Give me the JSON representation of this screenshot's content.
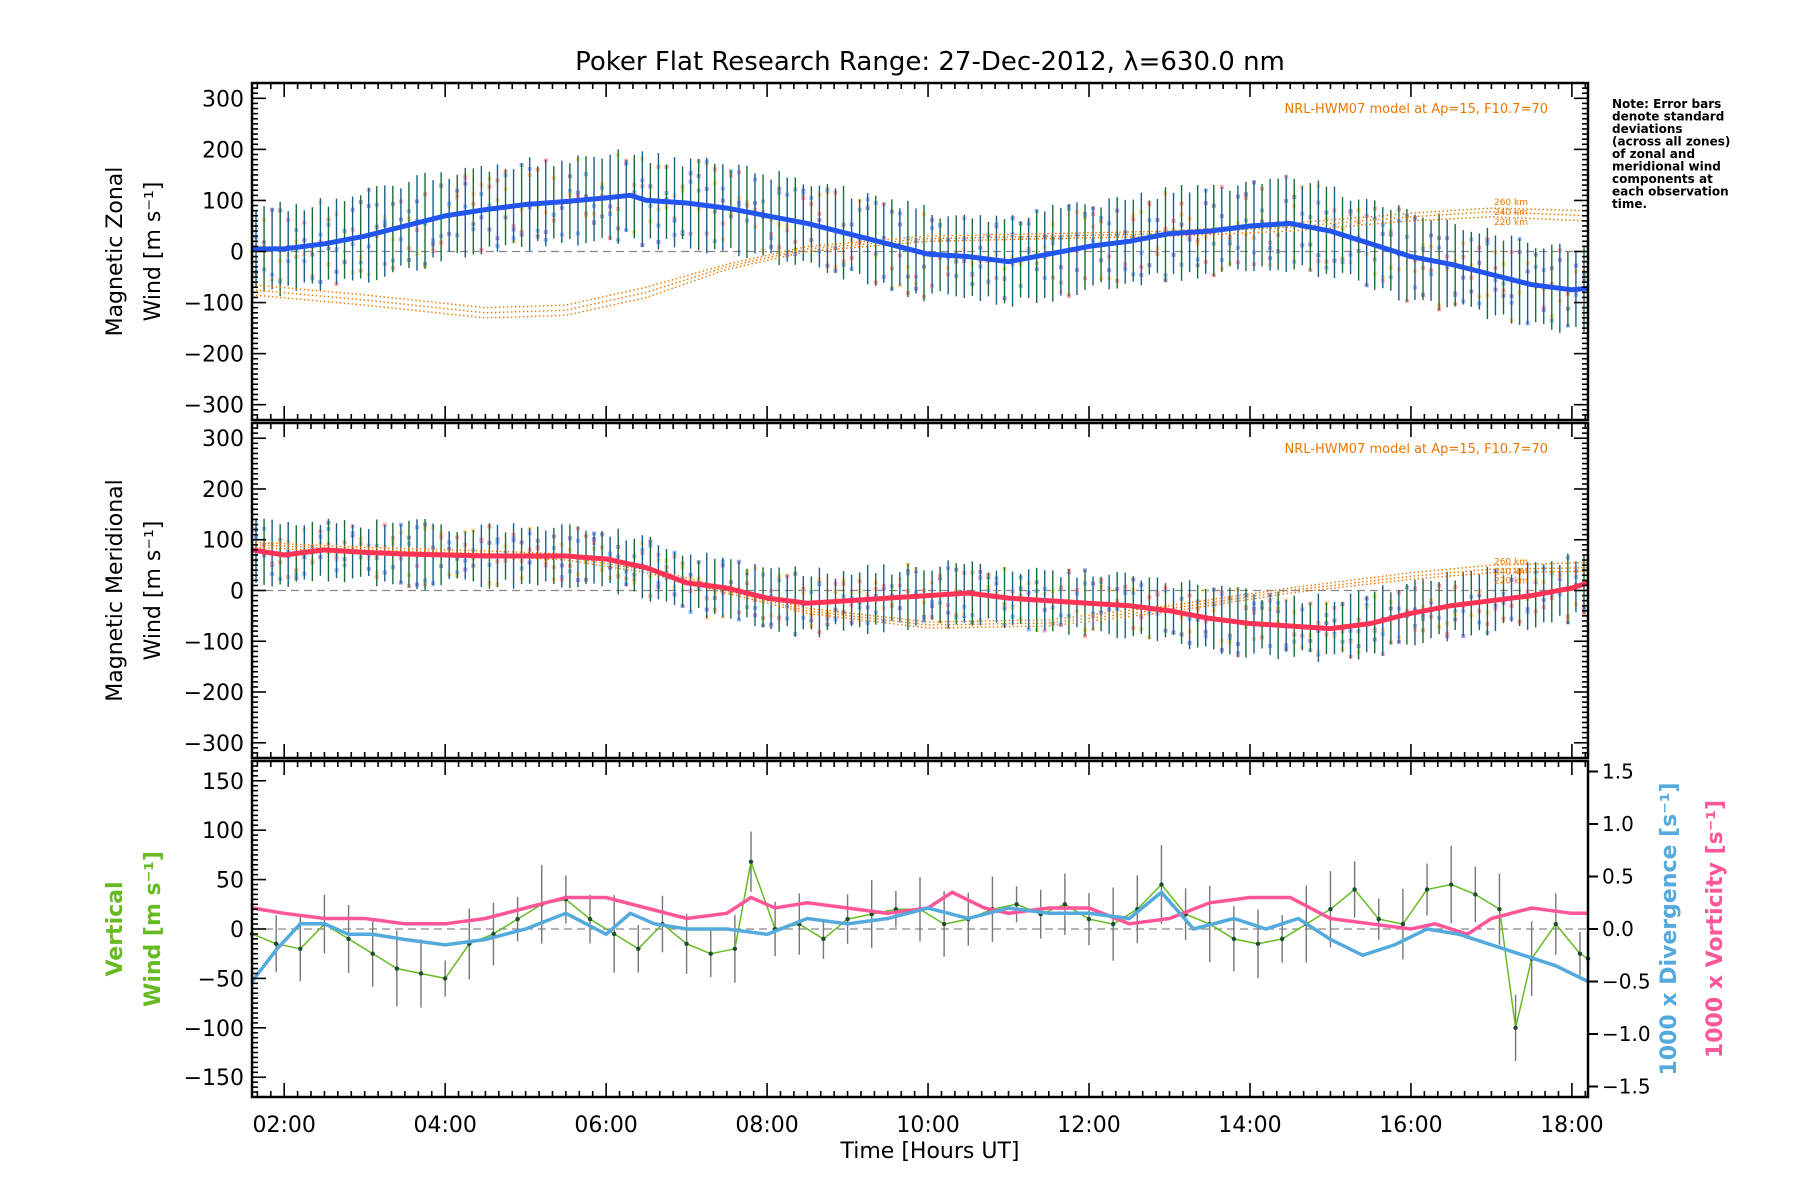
{
  "title": "Poker Flat Research Range: 27-Dec-2012, λ=630.0 nm",
  "note": [
    "Note: Error bars",
    "denote standard",
    "deviations",
    "(across all zones)",
    "of zonal and",
    "meridional wind",
    "components at",
    "each observation",
    "time."
  ],
  "model_label": "NRL-HWM07 model at Ap=15, F10.7=70",
  "altitude_labels": [
    "260 km",
    "240 km",
    "220 km"
  ],
  "xlabel": "Time [Hours UT]",
  "x_ticks": [
    "02:00",
    "04:00",
    "06:00",
    "08:00",
    "10:00",
    "12:00",
    "14:00",
    "16:00",
    "18:00"
  ],
  "colors": {
    "zonal": "#2255ee",
    "meridional": "#ff3355",
    "model": "#ee7700",
    "vertical": "#66bb22",
    "divergence": "#55aadd",
    "vorticity": "#ff5599",
    "zone_yellow": "#ffd98c",
    "zone_red": "#ffaaaa",
    "zone_purple": "#a99ae0",
    "zone_blue": "#99bbff",
    "errorbar_green": "#1a6b3a",
    "errorbar_gray": "#777777"
  },
  "chart_data": [
    {
      "type": "line",
      "name": "zonal-panel",
      "ylabel": [
        "Magnetic Zonal",
        "Wind [m s⁻¹]"
      ],
      "xlim": [
        1.6,
        18.2
      ],
      "ylim": [
        -330,
        330
      ],
      "y_ticks": [
        "300",
        "200",
        "100",
        "0",
        "−100",
        "−200",
        "−300"
      ],
      "y_tick_values": [
        300,
        200,
        100,
        0,
        -100,
        -200,
        -300
      ],
      "mean_wind": {
        "x": [
          1.6,
          2.0,
          2.5,
          3.0,
          3.5,
          4.0,
          4.5,
          5.0,
          5.5,
          6.0,
          6.3,
          6.5,
          7.0,
          7.5,
          8.0,
          8.5,
          9.0,
          9.5,
          10.0,
          10.5,
          11.0,
          11.5,
          12.0,
          12.5,
          13.0,
          13.5,
          14.0,
          14.5,
          15.0,
          15.5,
          16.0,
          16.5,
          17.0,
          17.5,
          18.0,
          18.2
        ],
        "y": [
          5,
          5,
          15,
          30,
          50,
          70,
          82,
          92,
          98,
          105,
          110,
          100,
          95,
          85,
          70,
          55,
          35,
          15,
          -5,
          -10,
          -20,
          -5,
          10,
          20,
          35,
          40,
          50,
          55,
          40,
          15,
          -10,
          -25,
          -45,
          -65,
          -75,
          -72
        ]
      },
      "model": [
        {
          "name": "260 km",
          "x": [
            1.6,
            3.0,
            4.5,
            5.5,
            6.5,
            7.5,
            8.5,
            10.0,
            11.5,
            13.0,
            14.5,
            16.0,
            17.0,
            18.2
          ],
          "y": [
            -65,
            -85,
            -110,
            -105,
            -70,
            -25,
            10,
            30,
            35,
            40,
            55,
            75,
            85,
            80
          ]
        },
        {
          "name": "240 km",
          "x": [
            1.6,
            3.0,
            4.5,
            5.5,
            6.5,
            7.5,
            8.5,
            10.0,
            11.5,
            13.0,
            14.5,
            16.0,
            17.0,
            18.2
          ],
          "y": [
            -75,
            -95,
            -120,
            -115,
            -80,
            -30,
            5,
            25,
            30,
            35,
            48,
            68,
            78,
            70
          ]
        },
        {
          "name": "220 km",
          "x": [
            1.6,
            3.0,
            4.5,
            5.5,
            6.5,
            7.5,
            8.5,
            10.0,
            11.5,
            13.0,
            14.5,
            16.0,
            17.0,
            18.2
          ],
          "y": [
            -85,
            -105,
            -130,
            -125,
            -90,
            -35,
            0,
            20,
            25,
            30,
            40,
            60,
            68,
            60
          ]
        }
      ]
    },
    {
      "type": "line",
      "name": "meridional-panel",
      "ylabel": [
        "Magnetic Meridional",
        "Wind [m s⁻¹]"
      ],
      "xlim": [
        1.6,
        18.2
      ],
      "ylim": [
        -330,
        330
      ],
      "y_ticks": [
        "300",
        "200",
        "100",
        "0",
        "−100",
        "−200",
        "−300"
      ],
      "y_tick_values": [
        300,
        200,
        100,
        0,
        -100,
        -200,
        -300
      ],
      "mean_wind": {
        "x": [
          1.6,
          2.0,
          2.5,
          3.0,
          3.5,
          4.0,
          4.5,
          5.0,
          5.5,
          6.0,
          6.5,
          7.0,
          7.5,
          8.0,
          8.5,
          9.0,
          9.5,
          10.0,
          10.5,
          11.0,
          11.5,
          12.0,
          12.5,
          13.0,
          13.5,
          14.0,
          14.5,
          15.0,
          15.5,
          16.0,
          16.5,
          17.0,
          17.5,
          18.0,
          18.2
        ],
        "y": [
          80,
          70,
          80,
          75,
          72,
          70,
          68,
          68,
          68,
          62,
          45,
          15,
          5,
          -15,
          -25,
          -20,
          -15,
          -10,
          -5,
          -15,
          -20,
          -25,
          -30,
          -40,
          -55,
          -65,
          -70,
          -75,
          -65,
          -45,
          -30,
          -20,
          -10,
          5,
          15
        ]
      },
      "model": [
        {
          "name": "260 km",
          "x": [
            1.6,
            3.0,
            4.5,
            5.5,
            6.5,
            7.5,
            8.5,
            10.0,
            11.5,
            13.0,
            14.5,
            16.0,
            17.0,
            18.2
          ],
          "y": [
            95,
            85,
            78,
            72,
            45,
            5,
            -35,
            -62,
            -58,
            -30,
            5,
            35,
            50,
            55
          ]
        },
        {
          "name": "240 km",
          "x": [
            1.6,
            3.0,
            4.5,
            5.5,
            6.5,
            7.5,
            8.5,
            10.0,
            11.5,
            13.0,
            14.5,
            16.0,
            17.0,
            18.2
          ],
          "y": [
            90,
            80,
            73,
            66,
            40,
            0,
            -40,
            -68,
            -64,
            -36,
            0,
            28,
            42,
            45
          ]
        },
        {
          "name": "220 km",
          "x": [
            1.6,
            3.0,
            4.5,
            5.5,
            6.5,
            7.5,
            8.5,
            10.0,
            11.5,
            13.0,
            14.5,
            16.0,
            17.0,
            18.2
          ],
          "y": [
            85,
            75,
            68,
            60,
            35,
            -5,
            -45,
            -74,
            -70,
            -42,
            -5,
            22,
            35,
            38
          ]
        }
      ]
    },
    {
      "type": "line",
      "name": "vertical-panel",
      "ylabel": [
        "Vertical",
        "Wind [m s⁻¹]"
      ],
      "y2label_divergence": "1000 x Divergence [s⁻¹]",
      "y2label_vorticity": "1000 x Vorticity [s⁻¹]",
      "xlim": [
        1.6,
        18.2
      ],
      "ylim": [
        -170,
        170
      ],
      "y_ticks": [
        "150",
        "100",
        "50",
        "0",
        "−50",
        "−100",
        "−150"
      ],
      "y_tick_values": [
        150,
        100,
        50,
        0,
        -50,
        -100,
        -150
      ],
      "y2lim": [
        -1.6,
        1.6
      ],
      "y2_ticks": [
        "1.5",
        "1.0",
        "0.5",
        "0.0",
        "−0.5",
        "−1.0",
        "−1.5"
      ],
      "y2_tick_values": [
        1.5,
        1.0,
        0.5,
        0.0,
        -0.5,
        -1.0,
        -1.5
      ],
      "vertical_wind": {
        "x": [
          1.6,
          1.9,
          2.2,
          2.5,
          2.8,
          3.1,
          3.4,
          3.7,
          4.0,
          4.3,
          4.6,
          4.9,
          5.2,
          5.5,
          5.8,
          6.1,
          6.4,
          6.7,
          7.0,
          7.3,
          7.6,
          7.8,
          8.1,
          8.4,
          8.7,
          9.0,
          9.3,
          9.6,
          9.9,
          10.2,
          10.5,
          10.8,
          11.1,
          11.4,
          11.7,
          12.0,
          12.3,
          12.6,
          12.9,
          13.2,
          13.5,
          13.8,
          14.1,
          14.4,
          14.7,
          15.0,
          15.3,
          15.6,
          15.9,
          16.2,
          16.5,
          16.8,
          17.1,
          17.3,
          17.5,
          17.8,
          18.1,
          18.2
        ],
        "y": [
          -5,
          -15,
          -20,
          5,
          -10,
          -25,
          -40,
          -45,
          -50,
          -15,
          -5,
          10,
          25,
          30,
          10,
          -5,
          -20,
          5,
          -15,
          -25,
          -20,
          68,
          0,
          5,
          -10,
          10,
          15,
          20,
          20,
          5,
          10,
          20,
          25,
          15,
          25,
          10,
          5,
          20,
          45,
          15,
          5,
          -10,
          -15,
          -10,
          5,
          20,
          40,
          10,
          5,
          40,
          45,
          35,
          20,
          -100,
          -30,
          5,
          -25,
          -30
        ]
      },
      "divergence": {
        "x": [
          1.6,
          1.9,
          2.2,
          2.5,
          2.8,
          3.1,
          3.5,
          4.0,
          4.5,
          5.0,
          5.5,
          6.0,
          6.3,
          6.6,
          7.0,
          7.5,
          8.0,
          8.5,
          9.0,
          9.5,
          10.0,
          10.5,
          11.0,
          11.5,
          12.0,
          12.5,
          12.9,
          13.3,
          13.8,
          14.2,
          14.6,
          15.0,
          15.4,
          15.8,
          16.2,
          16.6,
          17.0,
          17.4,
          17.8,
          18.2
        ],
        "y": [
          -0.5,
          -0.2,
          0.05,
          0.05,
          -0.05,
          -0.05,
          -0.1,
          -0.15,
          -0.1,
          0.0,
          0.15,
          -0.05,
          0.15,
          0.05,
          0.0,
          0.0,
          -0.05,
          0.1,
          0.05,
          0.1,
          0.2,
          0.1,
          0.2,
          0.15,
          0.15,
          0.1,
          0.35,
          0.0,
          0.1,
          0.0,
          0.1,
          -0.1,
          -0.25,
          -0.15,
          0.0,
          -0.05,
          -0.15,
          -0.25,
          -0.35,
          -0.5
        ]
      },
      "vorticity": {
        "x": [
          1.6,
          2.0,
          2.5,
          3.0,
          3.5,
          4.0,
          4.5,
          5.0,
          5.5,
          6.0,
          6.5,
          7.0,
          7.5,
          7.8,
          8.1,
          8.5,
          9.0,
          9.5,
          10.0,
          10.3,
          10.7,
          11.0,
          11.5,
          12.0,
          12.5,
          13.0,
          13.5,
          14.0,
          14.5,
          15.0,
          15.5,
          16.0,
          16.3,
          16.7,
          17.0,
          17.5,
          18.0,
          18.2
        ],
        "y": [
          0.2,
          0.15,
          0.1,
          0.1,
          0.05,
          0.05,
          0.1,
          0.2,
          0.3,
          0.3,
          0.2,
          0.1,
          0.15,
          0.3,
          0.2,
          0.25,
          0.2,
          0.15,
          0.2,
          0.35,
          0.2,
          0.15,
          0.2,
          0.2,
          0.05,
          0.1,
          0.25,
          0.3,
          0.3,
          0.1,
          0.05,
          0.0,
          0.05,
          -0.05,
          0.1,
          0.2,
          0.15,
          0.15
        ]
      }
    }
  ]
}
